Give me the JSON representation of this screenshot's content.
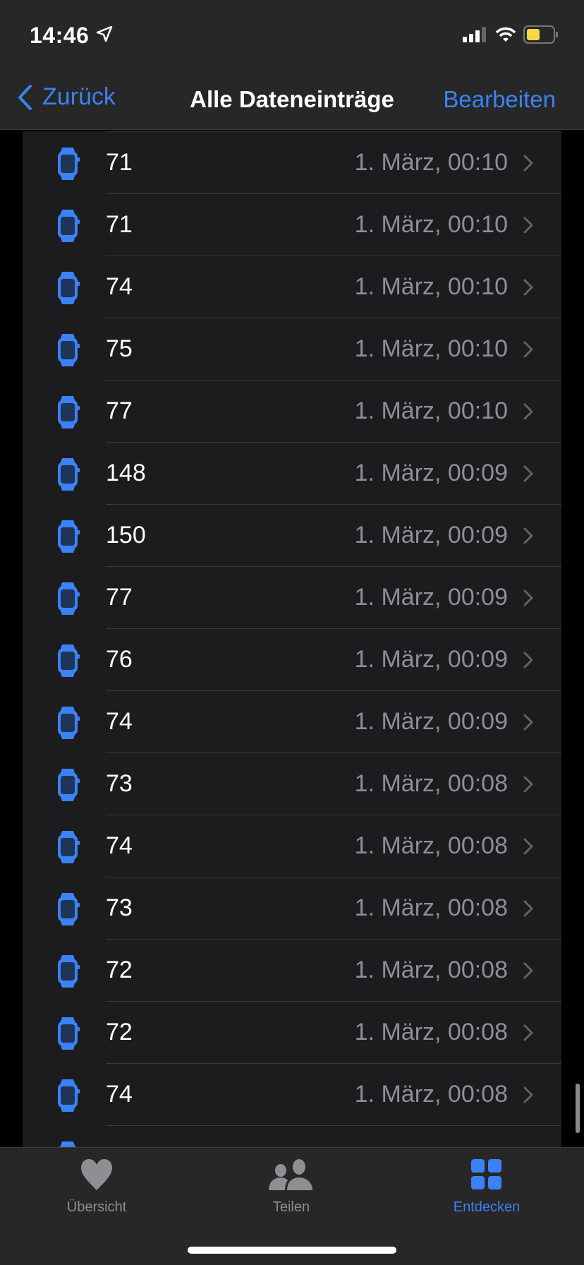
{
  "status_bar": {
    "time": "14:46",
    "battery_color": "#f9d648"
  },
  "nav": {
    "back_label": "Zurück",
    "title": "Alle Dateneinträge",
    "edit_label": "Bearbeiten"
  },
  "accent": "#3b82f6",
  "entries": [
    {
      "value": "71",
      "date": "1. März, 00:10",
      "icon": "watch-icon"
    },
    {
      "value": "71",
      "date": "1. März, 00:10",
      "icon": "watch-icon"
    },
    {
      "value": "74",
      "date": "1. März, 00:10",
      "icon": "watch-icon"
    },
    {
      "value": "75",
      "date": "1. März, 00:10",
      "icon": "watch-icon"
    },
    {
      "value": "77",
      "date": "1. März, 00:10",
      "icon": "watch-icon"
    },
    {
      "value": "148",
      "date": "1. März, 00:09",
      "icon": "watch-icon"
    },
    {
      "value": "150",
      "date": "1. März, 00:09",
      "icon": "watch-icon"
    },
    {
      "value": "77",
      "date": "1. März, 00:09",
      "icon": "watch-icon"
    },
    {
      "value": "76",
      "date": "1. März, 00:09",
      "icon": "watch-icon"
    },
    {
      "value": "74",
      "date": "1. März, 00:09",
      "icon": "watch-icon"
    },
    {
      "value": "73",
      "date": "1. März, 00:08",
      "icon": "watch-icon"
    },
    {
      "value": "74",
      "date": "1. März, 00:08",
      "icon": "watch-icon"
    },
    {
      "value": "73",
      "date": "1. März, 00:08",
      "icon": "watch-icon"
    },
    {
      "value": "72",
      "date": "1. März, 00:08",
      "icon": "watch-icon"
    },
    {
      "value": "72",
      "date": "1. März, 00:08",
      "icon": "watch-icon"
    },
    {
      "value": "74",
      "date": "1. März, 00:08",
      "icon": "watch-icon"
    }
  ],
  "tabs": [
    {
      "label": "Übersicht",
      "icon": "heart-icon",
      "active": false
    },
    {
      "label": "Teilen",
      "icon": "people-icon",
      "active": false
    },
    {
      "label": "Entdecken",
      "icon": "grid-icon",
      "active": true
    }
  ]
}
